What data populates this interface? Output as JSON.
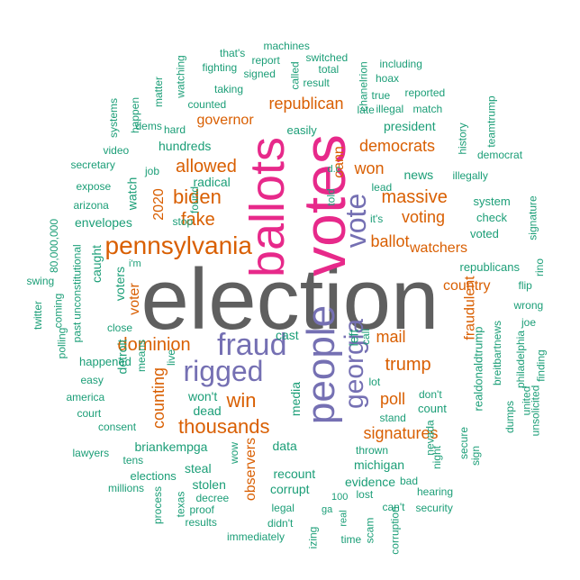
{
  "palette": {
    "gray": "#5f5f5f",
    "pink": "#e7298a",
    "purple": "#7570b3",
    "orange": "#d95f02",
    "teal": "#1b9e77"
  },
  "words": [
    {
      "text": "election",
      "color": "gray"
    },
    {
      "text": "votes",
      "color": "pink"
    },
    {
      "text": "ballots",
      "color": "pink"
    },
    {
      "text": "people",
      "color": "purple"
    },
    {
      "text": "fraud",
      "color": "purple"
    },
    {
      "text": "rigged",
      "color": "purple"
    },
    {
      "text": "vote",
      "color": "purple"
    },
    {
      "text": "georgia",
      "color": "purple"
    },
    {
      "text": "pennsylvania",
      "color": "orange"
    },
    {
      "text": "biden",
      "color": "orange"
    },
    {
      "text": "fake",
      "color": "orange"
    },
    {
      "text": "allowed",
      "color": "orange"
    },
    {
      "text": "republican",
      "color": "orange"
    },
    {
      "text": "governor",
      "color": "orange"
    },
    {
      "text": "2020",
      "color": "orange"
    },
    {
      "text": "oann",
      "color": "orange"
    },
    {
      "text": "won",
      "color": "orange"
    },
    {
      "text": "democrats",
      "color": "orange"
    },
    {
      "text": "massive",
      "color": "orange"
    },
    {
      "text": "voting",
      "color": "orange"
    },
    {
      "text": "ballot",
      "color": "orange"
    },
    {
      "text": "watchers",
      "color": "orange"
    },
    {
      "text": "country",
      "color": "orange"
    },
    {
      "text": "fraudulent",
      "color": "orange"
    },
    {
      "text": "mail",
      "color": "orange"
    },
    {
      "text": "trump",
      "color": "orange"
    },
    {
      "text": "poll",
      "color": "orange"
    },
    {
      "text": "signatures",
      "color": "orange"
    },
    {
      "text": "win",
      "color": "orange"
    },
    {
      "text": "thousands",
      "color": "orange"
    },
    {
      "text": "dominion",
      "color": "orange"
    },
    {
      "text": "counting",
      "color": "orange"
    },
    {
      "text": "voter",
      "color": "orange"
    },
    {
      "text": "observers",
      "color": "orange"
    },
    {
      "text": "machines",
      "color": "teal"
    },
    {
      "text": "switched",
      "color": "teal"
    },
    {
      "text": "that's",
      "color": "teal"
    },
    {
      "text": "report",
      "color": "teal"
    },
    {
      "text": "called",
      "color": "teal"
    },
    {
      "text": "fighting",
      "color": "teal"
    },
    {
      "text": "signed",
      "color": "teal"
    },
    {
      "text": "total",
      "color": "teal"
    },
    {
      "text": "including",
      "color": "teal"
    },
    {
      "text": "chanelrion",
      "color": "teal"
    },
    {
      "text": "hoax",
      "color": "teal"
    },
    {
      "text": "watching",
      "color": "teal"
    },
    {
      "text": "result",
      "color": "teal"
    },
    {
      "text": "true",
      "color": "teal"
    },
    {
      "text": "illegal",
      "color": "teal"
    },
    {
      "text": "reported",
      "color": "teal"
    },
    {
      "text": "match",
      "color": "teal"
    },
    {
      "text": "taking",
      "color": "teal"
    },
    {
      "text": "matter",
      "color": "teal"
    },
    {
      "text": "late",
      "color": "teal"
    },
    {
      "text": "teamtrump",
      "color": "teal"
    },
    {
      "text": "systems",
      "color": "teal"
    },
    {
      "text": "happen",
      "color": "teal"
    },
    {
      "text": "counted",
      "color": "teal"
    },
    {
      "text": "dems",
      "color": "teal"
    },
    {
      "text": "hard",
      "color": "teal"
    },
    {
      "text": "easily",
      "color": "teal"
    },
    {
      "text": "president",
      "color": "teal"
    },
    {
      "text": "history",
      "color": "teal"
    },
    {
      "text": "democrat",
      "color": "teal"
    },
    {
      "text": "video",
      "color": "teal"
    },
    {
      "text": "hundreds",
      "color": "teal"
    },
    {
      "text": "secretary",
      "color": "teal"
    },
    {
      "text": "job",
      "color": "teal"
    },
    {
      "text": "watch",
      "color": "teal"
    },
    {
      "text": "news",
      "color": "teal"
    },
    {
      "text": "illegally",
      "color": "teal"
    },
    {
      "text": "lead",
      "color": "teal"
    },
    {
      "text": "d.c",
      "color": "teal"
    },
    {
      "text": "expose",
      "color": "teal"
    },
    {
      "text": "radical",
      "color": "teal"
    },
    {
      "text": "found",
      "color": "teal"
    },
    {
      "text": "told",
      "color": "teal"
    },
    {
      "text": "arizona",
      "color": "teal"
    },
    {
      "text": "system",
      "color": "teal"
    },
    {
      "text": "signature",
      "color": "teal"
    },
    {
      "text": "envelopes",
      "color": "teal"
    },
    {
      "text": "stop",
      "color": "teal"
    },
    {
      "text": "it's",
      "color": "teal"
    },
    {
      "text": "check",
      "color": "teal"
    },
    {
      "text": "voted",
      "color": "teal"
    },
    {
      "text": "80,000,000",
      "color": "teal"
    },
    {
      "text": "caught",
      "color": "teal"
    },
    {
      "text": "republicans",
      "color": "teal"
    },
    {
      "text": "rino",
      "color": "teal"
    },
    {
      "text": "swing",
      "color": "teal"
    },
    {
      "text": "unconstitutional",
      "color": "teal"
    },
    {
      "text": "i'm",
      "color": "teal"
    },
    {
      "text": "flip",
      "color": "teal"
    },
    {
      "text": "twitter",
      "color": "teal"
    },
    {
      "text": "coming",
      "color": "teal"
    },
    {
      "text": "voters",
      "color": "teal"
    },
    {
      "text": "wrong",
      "color": "teal"
    },
    {
      "text": "past",
      "color": "teal"
    },
    {
      "text": "close",
      "color": "teal"
    },
    {
      "text": "cast",
      "color": "teal"
    },
    {
      "text": "left",
      "color": "teal"
    },
    {
      "text": "joe",
      "color": "teal"
    },
    {
      "text": "polling",
      "color": "teal"
    },
    {
      "text": "happened",
      "color": "teal"
    },
    {
      "text": "detroit",
      "color": "teal"
    },
    {
      "text": "call",
      "color": "teal"
    },
    {
      "text": "breitbartnews",
      "color": "teal"
    },
    {
      "text": "live",
      "color": "teal"
    },
    {
      "text": "realdonaldtrump",
      "color": "teal"
    },
    {
      "text": "philadelphia",
      "color": "teal"
    },
    {
      "text": "easy",
      "color": "teal"
    },
    {
      "text": "finding",
      "color": "teal"
    },
    {
      "text": "means",
      "color": "teal"
    },
    {
      "text": "lot",
      "color": "teal"
    },
    {
      "text": "america",
      "color": "teal"
    },
    {
      "text": "won't",
      "color": "teal"
    },
    {
      "text": "don't",
      "color": "teal"
    },
    {
      "text": "united",
      "color": "teal"
    },
    {
      "text": "court",
      "color": "teal"
    },
    {
      "text": "dead",
      "color": "teal"
    },
    {
      "text": "count",
      "color": "teal"
    },
    {
      "text": "dumps",
      "color": "teal"
    },
    {
      "text": "unsolicited",
      "color": "teal"
    },
    {
      "text": "media",
      "color": "teal"
    },
    {
      "text": "consent",
      "color": "teal"
    },
    {
      "text": "stand",
      "color": "teal"
    },
    {
      "text": "briankempga",
      "color": "teal"
    },
    {
      "text": "nevada",
      "color": "teal"
    },
    {
      "text": "secure",
      "color": "teal"
    },
    {
      "text": "sign",
      "color": "teal"
    },
    {
      "text": "wow",
      "color": "teal"
    },
    {
      "text": "data",
      "color": "teal"
    },
    {
      "text": "lawyers",
      "color": "teal"
    },
    {
      "text": "thrown",
      "color": "teal"
    },
    {
      "text": "night",
      "color": "teal"
    },
    {
      "text": "tens",
      "color": "teal"
    },
    {
      "text": "michigan",
      "color": "teal"
    },
    {
      "text": "steal",
      "color": "teal"
    },
    {
      "text": "recount",
      "color": "teal"
    },
    {
      "text": "elections",
      "color": "teal"
    },
    {
      "text": "evidence",
      "color": "teal"
    },
    {
      "text": "bad",
      "color": "teal"
    },
    {
      "text": "stolen",
      "color": "teal"
    },
    {
      "text": "corrupt",
      "color": "teal"
    },
    {
      "text": "millions",
      "color": "teal"
    },
    {
      "text": "hearing",
      "color": "teal"
    },
    {
      "text": "decree",
      "color": "teal"
    },
    {
      "text": "100",
      "color": "teal"
    },
    {
      "text": "process",
      "color": "teal"
    },
    {
      "text": "texas",
      "color": "teal"
    },
    {
      "text": "legal",
      "color": "teal"
    },
    {
      "text": "lost",
      "color": "teal"
    },
    {
      "text": "can't",
      "color": "teal"
    },
    {
      "text": "security",
      "color": "teal"
    },
    {
      "text": "proof",
      "color": "teal"
    },
    {
      "text": "ga",
      "color": "teal"
    },
    {
      "text": "real",
      "color": "teal"
    },
    {
      "text": "results",
      "color": "teal"
    },
    {
      "text": "didn't",
      "color": "teal"
    },
    {
      "text": "izing",
      "color": "teal"
    },
    {
      "text": "scam",
      "color": "teal"
    },
    {
      "text": "corruption",
      "color": "teal"
    },
    {
      "text": "immediately",
      "color": "teal"
    },
    {
      "text": "time",
      "color": "teal"
    }
  ]
}
